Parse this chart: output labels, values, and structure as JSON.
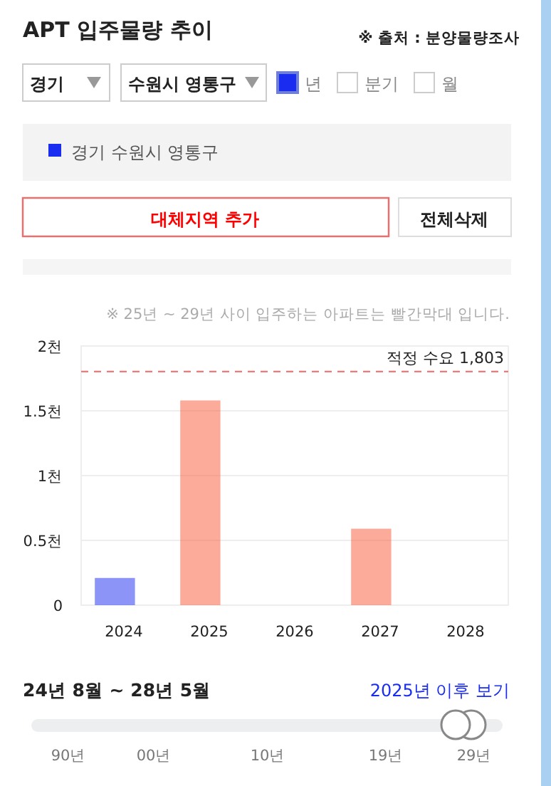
{
  "chart_data": {
    "type": "bar",
    "title": "APT 입주물량 추이",
    "subtitle": "※ 출처 : 분양물량조사",
    "categories": [
      "2024",
      "2025",
      "2026",
      "2027",
      "2028"
    ],
    "series": [
      {
        "name": "경기 수원시 영통구",
        "color": "#1a2cf0",
        "colors": [
          "#1a2cf0",
          "#f95735",
          "#f95735",
          "#f95735",
          "#f95735"
        ],
        "values": [
          0.21,
          1.58,
          0,
          0.59,
          0
        ]
      }
    ],
    "ylim": [
      0,
      2
    ],
    "yticks": [
      0,
      {
        "value": 0.5,
        "label": "0.5천"
      },
      {
        "value": 1,
        "label": "1천"
      },
      {
        "value": 1.5,
        "label": "1.5천"
      },
      {
        "value": 2,
        "label": "2천"
      }
    ],
    "ref_lines": [
      {
        "axis": "y",
        "value": 1.803,
        "label": "적정 수요 1,803",
        "color": "#f07a7a",
        "line_style": "dashed"
      }
    ],
    "grid": "y",
    "legend": "top",
    "annotations": [
      "경기",
      "수원시 영통구",
      "년",
      "분기",
      "월",
      "대체지역 추가",
      "전체삭제",
      "※ 25년 ~ 29년 사이 입주하는 아파트는 빨간막대 입니다.",
      "24년 8월 ~ 28년 5월",
      "2025년 이후 보기",
      "90년",
      "00년",
      "10년",
      "19년",
      "29년"
    ]
  }
}
